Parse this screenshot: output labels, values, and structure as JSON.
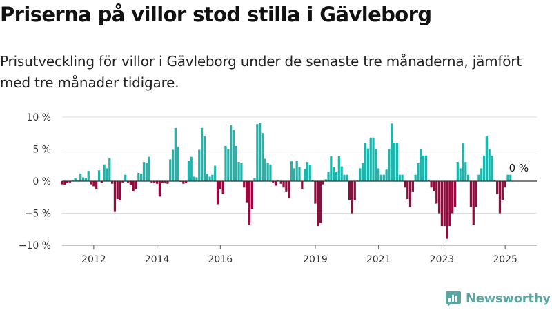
{
  "title": "Priserna på villor stod stilla i Gävleborg",
  "subtitle": "Prisutveckling för villor i Gävleborg under de senaste tre månaderna, jämfört med tre månader tidigare.",
  "brand": {
    "name": "Newsworthy",
    "icon": "newsworthy-chart-logo-icon",
    "color": "#5aa6a0"
  },
  "colors": {
    "positive": "#1fb5ac",
    "negative": "#99073e",
    "zero_line": "#333333",
    "grid": "#dddddd"
  },
  "chart_data": {
    "type": "bar",
    "ylim": [
      -10,
      10
    ],
    "y_ticks": [
      {
        "value": 10,
        "label": "10 %"
      },
      {
        "value": 5,
        "label": "5 %"
      },
      {
        "value": 0,
        "label": "0 %"
      },
      {
        "value": -5,
        "label": "−5 %"
      },
      {
        "value": -10,
        "label": "−10 %"
      }
    ],
    "x_ticks": [
      {
        "value": 2012,
        "label": "2012"
      },
      {
        "value": 2014,
        "label": "2014"
      },
      {
        "value": 2016,
        "label": "2016"
      },
      {
        "value": 2019,
        "label": "2019"
      },
      {
        "value": 2021,
        "label": "2021"
      },
      {
        "value": 2023,
        "label": "2023"
      },
      {
        "value": 2025,
        "label": "2025"
      }
    ],
    "x_range": [
      2011.0,
      2026.0
    ],
    "series": [
      {
        "start": "2011-01",
        "frequency": "monthly",
        "unit": "%",
        "values": [
          -0.5,
          -0.6,
          -0.3,
          -0.2,
          0.2,
          0.5,
          0.1,
          1.2,
          0.6,
          0.5,
          1.6,
          -0.5,
          -0.8,
          -1.2,
          1.7,
          -0.3,
          2.6,
          2.0,
          3.6,
          -0.4,
          -4.8,
          -2.8,
          -3.0,
          -0.2,
          1.0,
          -0.2,
          -0.6,
          -1.5,
          -1.2,
          1.3,
          1.2,
          3.0,
          2.9,
          3.8,
          -0.2,
          -0.3,
          -0.4,
          -2.4,
          -0.3,
          -0.2,
          -0.4,
          3.4,
          4.9,
          8.3,
          5.4,
          -0.1,
          -0.4,
          -0.3,
          3.2,
          3.8,
          0.7,
          0.6,
          4.9,
          8.3,
          7.1,
          1.2,
          0.7,
          1.0,
          2.4,
          -3.6,
          -1.2,
          -2.0,
          5.5,
          5.0,
          8.8,
          8.0,
          5.5,
          3.0,
          2.8,
          -1.0,
          -3.3,
          -6.8,
          -4.3,
          0.5,
          8.9,
          9.1,
          7.5,
          3.5,
          2.8,
          2.6,
          -0.2,
          -0.7,
          0.2,
          -0.4,
          -1.0,
          -1.6,
          -2.7,
          3.1,
          2.0,
          3.2,
          2.2,
          -1.2,
          1.9,
          3.0,
          2.5,
          0.2,
          -3.5,
          -7.0,
          -6.5,
          -0.5,
          0.3,
          1.5,
          3.9,
          2.2,
          1.4,
          3.9,
          2.3,
          1.0,
          1.0,
          -2.9,
          -5.0,
          -3.0,
          0.2,
          2.0,
          2.8,
          6.0,
          5.1,
          6.8,
          6.8,
          5.0,
          2.0,
          1.0,
          1.0,
          1.8,
          5.0,
          9.0,
          6.0,
          6.0,
          1.0,
          1.0,
          -1.0,
          -2.8,
          -4.0,
          -1.6,
          1.0,
          2.8,
          5.0,
          4.0,
          4.0,
          0.2,
          -1.0,
          -1.5,
          -3.5,
          -5.0,
          -7.0,
          -7.0,
          -9.0,
          -7.0,
          -5.0,
          -4.0,
          3.0,
          2.0,
          5.9,
          3.0,
          1.0,
          -4.0,
          -6.8,
          -4.0,
          1.0,
          2.0,
          4.0,
          7.0,
          5.0,
          4.0,
          0.2,
          -2.0,
          -5.0,
          -3.0,
          -1.0,
          1.0,
          1.0,
          0.0
        ]
      }
    ],
    "annotations": [
      {
        "label": "0 %",
        "target": "last"
      }
    ]
  }
}
